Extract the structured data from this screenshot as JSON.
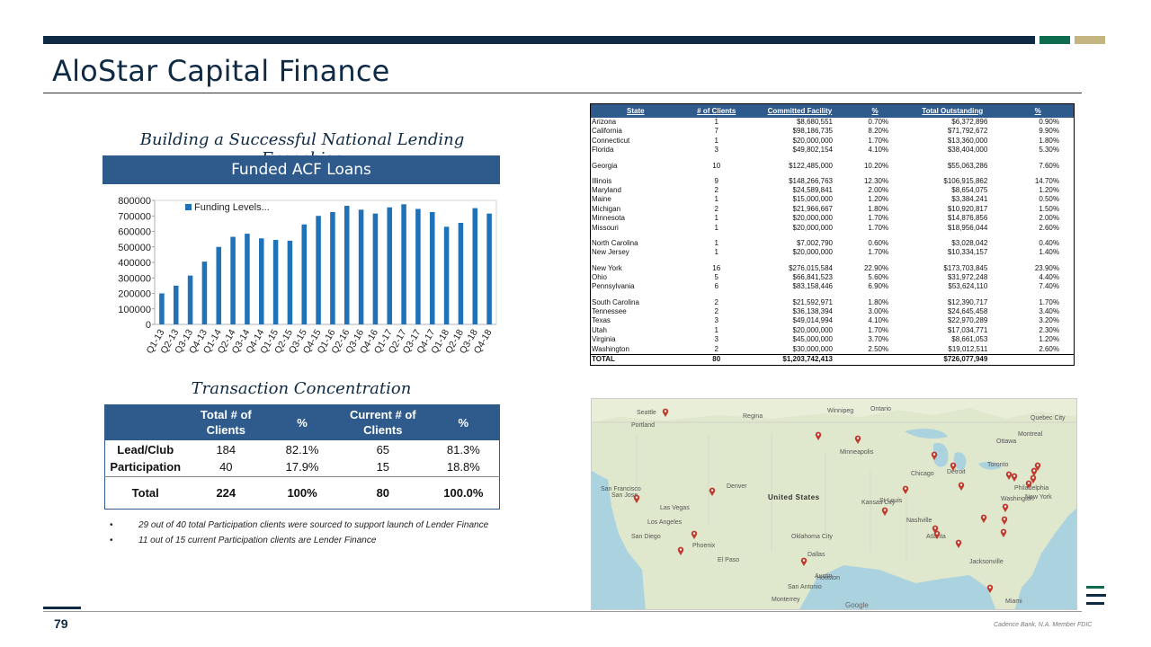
{
  "header": {
    "title": "AloStar Capital Finance"
  },
  "subtitle": "Building a Successful National Lending Franchise",
  "chart_header": "Funded ACF Loans",
  "chart_data": {
    "type": "bar",
    "categories": [
      "Q1-13",
      "Q2-13",
      "Q3-13",
      "Q4-13",
      "Q1-14",
      "Q2-14",
      "Q3-14",
      "Q4-14",
      "Q1-15",
      "Q2-15",
      "Q3-15",
      "Q4-15",
      "Q1-16",
      "Q2-16",
      "Q3-16",
      "Q4-16",
      "Q1-17",
      "Q2-17",
      "Q3-17",
      "Q4-17",
      "Q1-18",
      "Q2-18",
      "Q3-18",
      "Q4-18"
    ],
    "series": [
      {
        "name": "Funding Levels...",
        "values": [
          200000,
          250000,
          315000,
          405000,
          500000,
          565000,
          585000,
          555000,
          545000,
          540000,
          645000,
          700000,
          725000,
          765000,
          740000,
          715000,
          755000,
          775000,
          745000,
          725000,
          630000,
          655000,
          750000,
          715000
        ]
      }
    ],
    "yticks": [
      "800000",
      "700000",
      "600000",
      "500000",
      "400000",
      "300000",
      "200000",
      "100000",
      "0"
    ],
    "ylim": [
      0,
      800000
    ],
    "legend": "top-left",
    "bar_color": "#1f72b8"
  },
  "transaction": {
    "title": "Transaction Concentration",
    "headers": [
      "",
      "Total # of Clients",
      "%",
      "Current # of Clients",
      "%"
    ],
    "rows": [
      {
        "label": "Lead/Club",
        "total": "184",
        "pct1": "82.1%",
        "current": "65",
        "pct2": "81.3%"
      },
      {
        "label": "Participation",
        "total": "40",
        "pct1": "17.9%",
        "current": "15",
        "pct2": "18.8%"
      }
    ],
    "total": {
      "label": "Total",
      "total": "224",
      "pct1": "100%",
      "current": "80",
      "pct2": "100.0%"
    }
  },
  "bullets": [
    "29 out of 40 total Participation clients were sourced to support launch of Lender Finance",
    "11 out of 15 current Participation clients are Lender Finance"
  ],
  "state_table": {
    "headers": [
      "State",
      "# of Clients",
      "Committed Facility",
      "%",
      "Total Outstanding",
      "%"
    ],
    "rows": [
      [
        "Arizona",
        "1",
        "$8,680,551",
        "0.70%",
        "$6,372,896",
        "0.90%"
      ],
      [
        "California",
        "7",
        "$98,186,735",
        "8.20%",
        "$71,792,672",
        "9.90%"
      ],
      [
        "Connecticut",
        "1",
        "$20,000,000",
        "1.70%",
        "$13,360,000",
        "1.80%"
      ],
      [
        "Florida",
        "3",
        "$49,802,154",
        "4.10%",
        "$38,404,000",
        "5.30%"
      ],
      [
        "Georgia",
        "10",
        "$122,485,000",
        "10.20%",
        "$55,063,286",
        "7.60%"
      ],
      [
        "Illinois",
        "9",
        "$148,266,763",
        "12.30%",
        "$106,915,862",
        "14.70%"
      ],
      [
        "Maryland",
        "2",
        "$24,589,841",
        "2.00%",
        "$8,654,075",
        "1.20%"
      ],
      [
        "Maine",
        "1",
        "$15,000,000",
        "1.20%",
        "$3,384,241",
        "0.50%"
      ],
      [
        "Michigan",
        "2",
        "$21,966,667",
        "1.80%",
        "$10,920,817",
        "1.50%"
      ],
      [
        "Minnesota",
        "1",
        "$20,000,000",
        "1.70%",
        "$14,876,856",
        "2.00%"
      ],
      [
        "Missouri",
        "1",
        "$20,000,000",
        "1.70%",
        "$18,956,044",
        "2.60%"
      ],
      [
        "North Carolina",
        "1",
        "$7,002,790",
        "0.60%",
        "$3,028,042",
        "0.40%"
      ],
      [
        "New Jersey",
        "1",
        "$20,000,000",
        "1.70%",
        "$10,334,157",
        "1.40%"
      ],
      [
        "New York",
        "16",
        "$276,015,584",
        "22.90%",
        "$173,703,845",
        "23.90%"
      ],
      [
        "Ohio",
        "5",
        "$66,841,523",
        "5.60%",
        "$31,972,248",
        "4.40%"
      ],
      [
        "Pennsylvania",
        "6",
        "$83,158,446",
        "6.90%",
        "$53,624,110",
        "7.40%"
      ],
      [
        "South Carolina",
        "2",
        "$21,592,971",
        "1.80%",
        "$12,390,717",
        "1.70%"
      ],
      [
        "Tennessee",
        "2",
        "$36,138,394",
        "3.00%",
        "$24,645,458",
        "3.40%"
      ],
      [
        "Texas",
        "3",
        "$49,014,994",
        "4.10%",
        "$22,970,289",
        "3.20%"
      ],
      [
        "Utah",
        "1",
        "$20,000,000",
        "1.70%",
        "$17,034,771",
        "2.30%"
      ],
      [
        "Virginia",
        "3",
        "$45,000,000",
        "3.70%",
        "$8,661,053",
        "1.20%"
      ],
      [
        "Washington",
        "2",
        "$30,000,000",
        "2.50%",
        "$19,012,511",
        "2.60%"
      ]
    ],
    "gap_before": [
      4,
      5,
      11,
      13,
      16
    ],
    "total": [
      "TOTAL",
      "80",
      "$1,203,742,413",
      "",
      "$726,077,949",
      ""
    ]
  },
  "map": {
    "country_label": "United States",
    "place_labels": [
      "Winnipeg",
      "Regina",
      "Ontario",
      "Quebec City",
      "Montreal",
      "Ottawa",
      "Toronto",
      "Chicago",
      "Detroit",
      "New York",
      "Washington",
      "Philadelphia",
      "San Francisco",
      "San Jose",
      "Las Vegas",
      "Los Angeles",
      "San Diego",
      "Phoenix",
      "Dallas",
      "Houston",
      "Austin",
      "San Antonio",
      "Nashville",
      "Atlanta",
      "Jacksonville",
      "Miami",
      "Kansas City",
      "St Louis",
      "Denver",
      "Monterrey",
      "El Paso",
      "Oklahoma City",
      "Portland",
      "Seattle",
      "Minneapolis"
    ],
    "pin_color": "#c0392b",
    "attribution": "Google"
  },
  "footer": {
    "page": "79",
    "text": "Cadence Bank, N.A. Member FDIC"
  },
  "colors": {
    "navy": "#0f2a44",
    "header_blue": "#2f5a8c",
    "green": "#0d6b4e",
    "gold": "#c5b580"
  }
}
